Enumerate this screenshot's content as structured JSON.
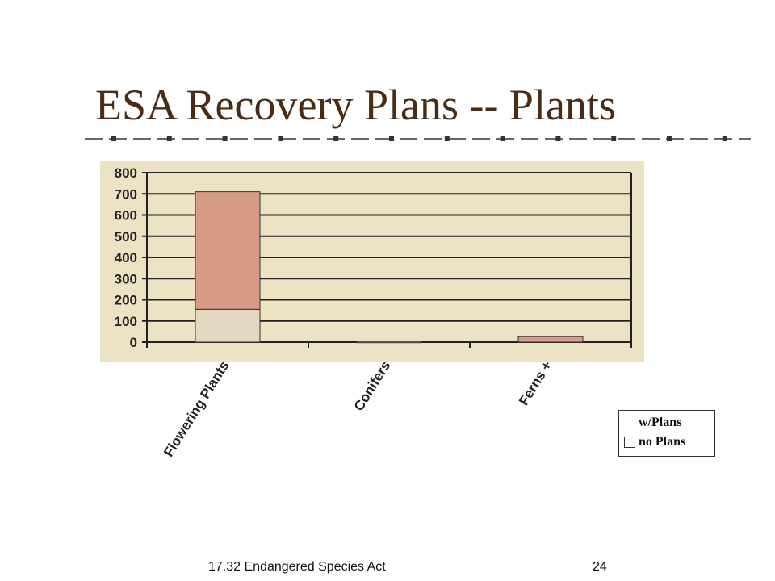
{
  "slide": {
    "title": "ESA Recovery Plans -- Plants",
    "footer_text": "17.32 Endangered Species Act",
    "page_number": "24"
  },
  "colors": {
    "title": "#4a2c16",
    "panel": "#ece3c5",
    "w_plans": "#d69a85",
    "no_plans": "#e3d8c2",
    "grid": "#222222"
  },
  "chart_data": {
    "type": "bar",
    "stacked": true,
    "categories": [
      "Flowering Plants",
      "Conifers",
      "Ferns +"
    ],
    "series": [
      {
        "name": "no Plans",
        "values": [
          155,
          0,
          0
        ]
      },
      {
        "name": "w/Plans",
        "values": [
          555,
          3,
          26
        ]
      }
    ],
    "yticks": [
      "0",
      "100",
      "200",
      "300",
      "400",
      "500",
      "600",
      "700",
      "800"
    ],
    "ylim": [
      0,
      800
    ],
    "grid": true,
    "legend": {
      "position": "bottom-right",
      "entries": [
        "w/Plans",
        "no Plans"
      ]
    }
  }
}
